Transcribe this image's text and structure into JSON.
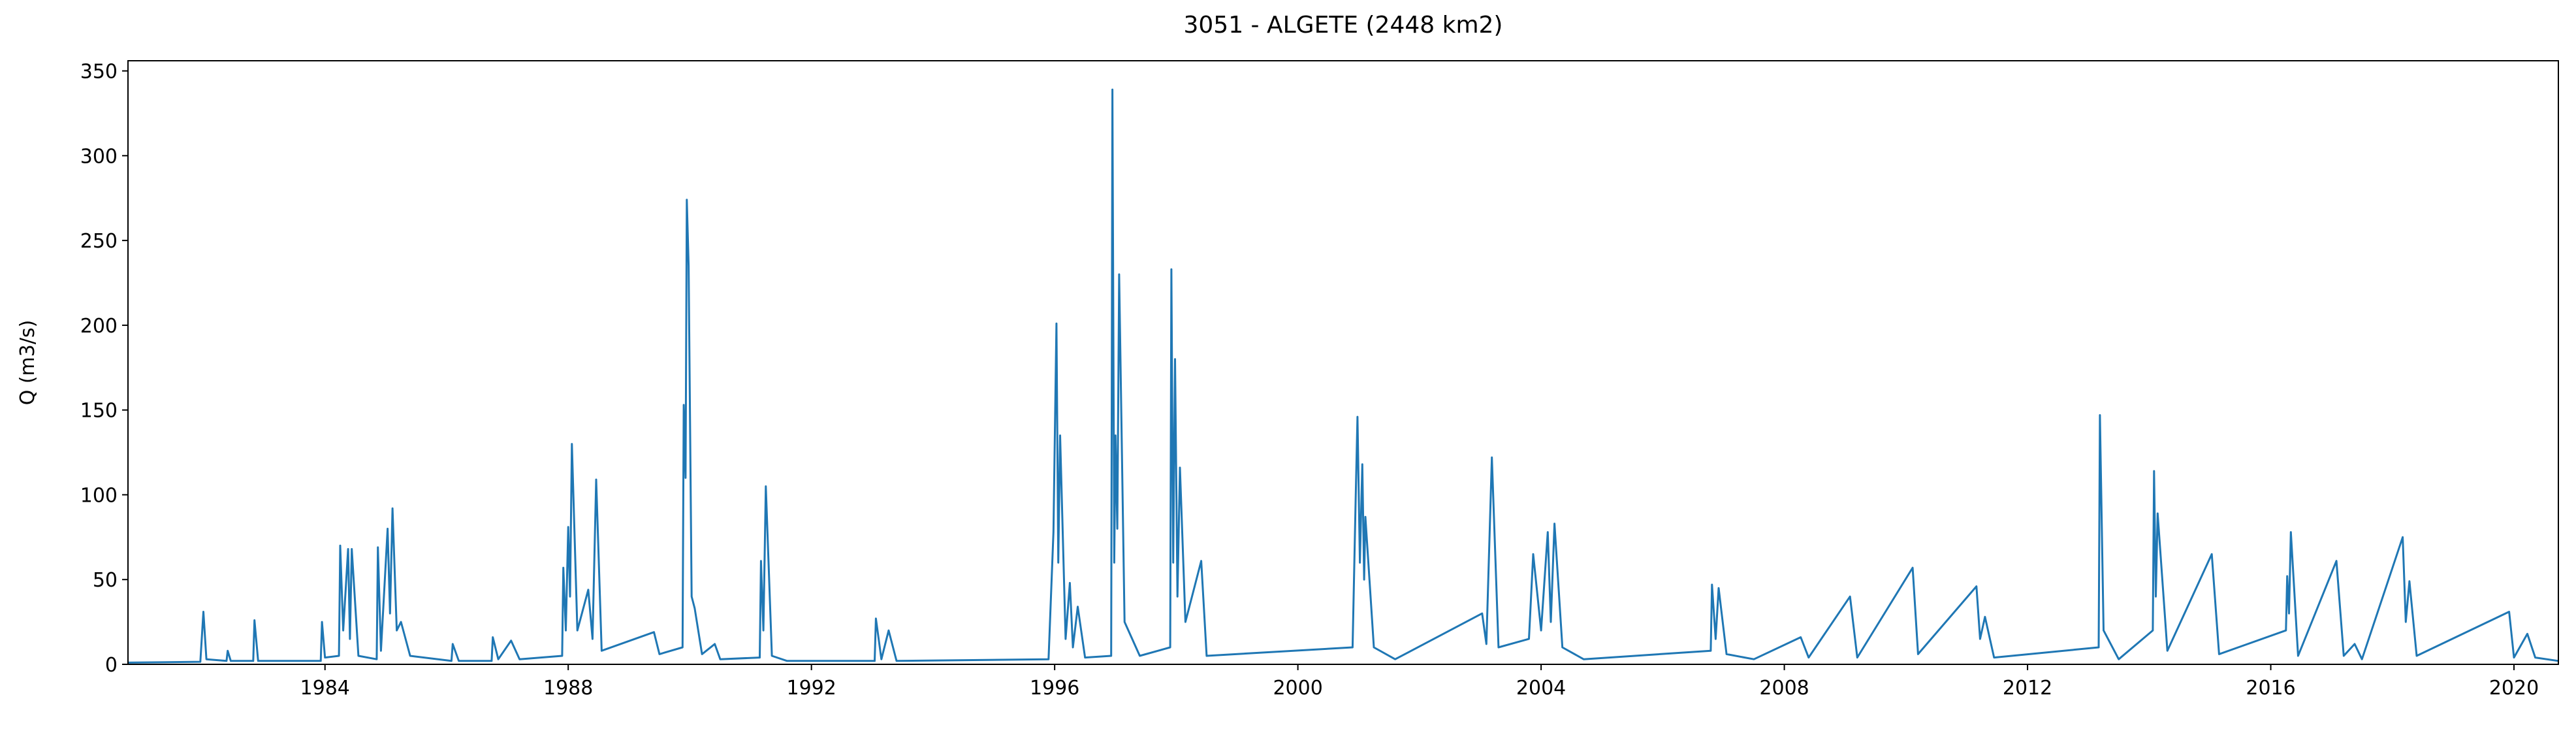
{
  "chart_data": {
    "type": "line",
    "title": "3051 - ALGETE (2448 km2)",
    "ylabel": "Q (m3/s)",
    "color": "#1f77b4",
    "xlim": [
      1980.76,
      2020.73
    ],
    "xticks": [
      1984,
      1988,
      1992,
      1996,
      2000,
      2004,
      2008,
      2012,
      2016,
      2020
    ],
    "ylim": [
      0,
      356
    ],
    "yticks": [
      0,
      50,
      100,
      150,
      200,
      250,
      300,
      350
    ],
    "x": [
      1980.76,
      1981.95,
      1982.0,
      1982.05,
      1982.38,
      1982.4,
      1982.45,
      1982.82,
      1982.84,
      1982.9,
      1983.93,
      1983.95,
      1984.0,
      1984.23,
      1984.25,
      1984.3,
      1984.38,
      1984.41,
      1984.44,
      1984.55,
      1984.85,
      1984.87,
      1984.92,
      1985.03,
      1985.07,
      1985.11,
      1985.18,
      1985.25,
      1985.4,
      1986.08,
      1986.1,
      1986.2,
      1986.74,
      1986.76,
      1986.85,
      1987.06,
      1987.2,
      1987.9,
      1987.92,
      1987.96,
      1988.0,
      1988.03,
      1988.06,
      1988.15,
      1988.33,
      1988.4,
      1988.46,
      1988.55,
      1989.41,
      1989.5,
      1989.88,
      1989.9,
      1989.93,
      1989.95,
      1989.98,
      1990.03,
      1990.08,
      1990.2,
      1990.41,
      1990.5,
      1991.15,
      1991.17,
      1991.21,
      1991.25,
      1991.35,
      1991.6,
      1993.04,
      1993.06,
      1993.15,
      1993.27,
      1993.4,
      1995.9,
      1995.98,
      1996.03,
      1996.06,
      1996.09,
      1996.18,
      1996.25,
      1996.3,
      1996.38,
      1996.5,
      1996.93,
      1996.95,
      1996.98,
      1997.0,
      1997.03,
      1997.06,
      1997.15,
      1997.4,
      1997.9,
      1997.92,
      1997.95,
      1997.98,
      1998.02,
      1998.06,
      1998.15,
      1998.41,
      1998.5,
      2000.9,
      2000.95,
      2000.98,
      2001.02,
      2001.06,
      2001.09,
      2001.11,
      2001.25,
      2001.6,
      2003.03,
      2003.1,
      2003.19,
      2003.3,
      2003.8,
      2003.87,
      2004.0,
      2004.11,
      2004.16,
      2004.22,
      2004.35,
      2004.7,
      2006.79,
      2006.81,
      2006.87,
      2006.92,
      2007.05,
      2007.5,
      2008.27,
      2008.4,
      2009.08,
      2009.2,
      2010.11,
      2010.2,
      2011.16,
      2011.22,
      2011.3,
      2011.45,
      2013.17,
      2013.19,
      2013.25,
      2013.5,
      2014.06,
      2014.08,
      2014.11,
      2014.14,
      2014.3,
      2015.03,
      2015.15,
      2016.25,
      2016.27,
      2016.3,
      2016.33,
      2016.45,
      2017.08,
      2017.2,
      2017.38,
      2017.5,
      2018.17,
      2018.22,
      2018.28,
      2018.4,
      2019.92,
      2020.0,
      2020.22,
      2020.35,
      2020.73
    ],
    "values": [
      1,
      1.5,
      31,
      3,
      2,
      8,
      2,
      2,
      26,
      2,
      2,
      25,
      4,
      5,
      70,
      20,
      68,
      15,
      68,
      5,
      3,
      69,
      8,
      80,
      30,
      92,
      20,
      25,
      5,
      2,
      12,
      2,
      2,
      16,
      3,
      14,
      3,
      5,
      57,
      20,
      81,
      40,
      130,
      20,
      44,
      15,
      109,
      8,
      19,
      6,
      10,
      153,
      110,
      274,
      235,
      40,
      33,
      6,
      12,
      3,
      4,
      61,
      20,
      105,
      5,
      2,
      2,
      27,
      3,
      20,
      2,
      3,
      78,
      201,
      60,
      135,
      15,
      48,
      10,
      34,
      4,
      5,
      339,
      60,
      135,
      80,
      230,
      25,
      5,
      10,
      233,
      60,
      180,
      40,
      116,
      25,
      61,
      5,
      10,
      97,
      146,
      60,
      118,
      50,
      87,
      10,
      3,
      30,
      12,
      122,
      10,
      15,
      65,
      20,
      78,
      25,
      83,
      10,
      3,
      8,
      47,
      15,
      45,
      6,
      3,
      16,
      4,
      40,
      4,
      57,
      6,
      46,
      15,
      28,
      4,
      10,
      147,
      20,
      3,
      20,
      114,
      40,
      89,
      8,
      65,
      6,
      20,
      52,
      30,
      78,
      5,
      61,
      5,
      12,
      3,
      75,
      25,
      49,
      5,
      31,
      4,
      18,
      4,
      2
    ]
  }
}
